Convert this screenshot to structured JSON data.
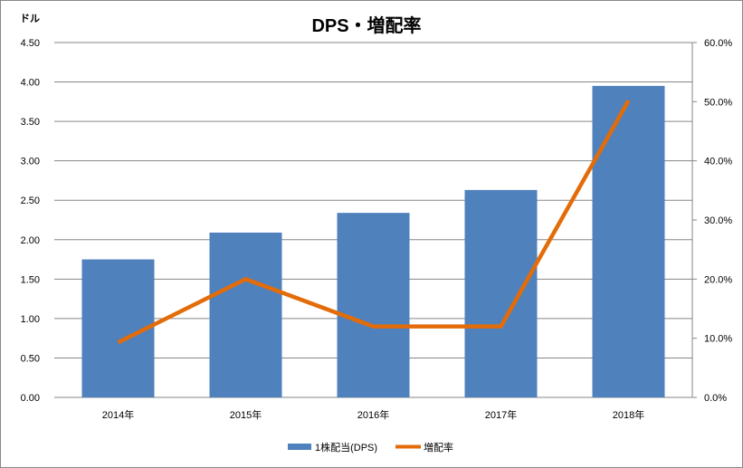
{
  "chart_data": {
    "type": "bar+line",
    "title": "DPS・増配率",
    "ylabel": "ドル",
    "categories": [
      "2014年",
      "2015年",
      "2016年",
      "2017年",
      "2018年"
    ],
    "series": [
      {
        "name": "1株配当(DPS)",
        "type": "bar",
        "axis": "left",
        "color": "#4f81bd",
        "values": [
          1.75,
          2.09,
          2.34,
          2.63,
          3.95
        ]
      },
      {
        "name": "増配率",
        "type": "line",
        "axis": "right",
        "color": "#e36c09",
        "values": [
          9.3,
          20.0,
          12.0,
          12.0,
          50.2
        ]
      }
    ],
    "ylim": [
      0,
      4.5
    ],
    "y_ticks": [
      "0.00",
      "0.50",
      "1.00",
      "1.50",
      "2.00",
      "2.50",
      "3.00",
      "3.50",
      "4.00",
      "4.50"
    ],
    "y2lim": [
      0,
      60
    ],
    "y2_ticks": [
      "0.0%",
      "10.0%",
      "20.0%",
      "30.0%",
      "40.0%",
      "50.0%",
      "60.0%"
    ],
    "grid": true,
    "legend": "bottom"
  }
}
